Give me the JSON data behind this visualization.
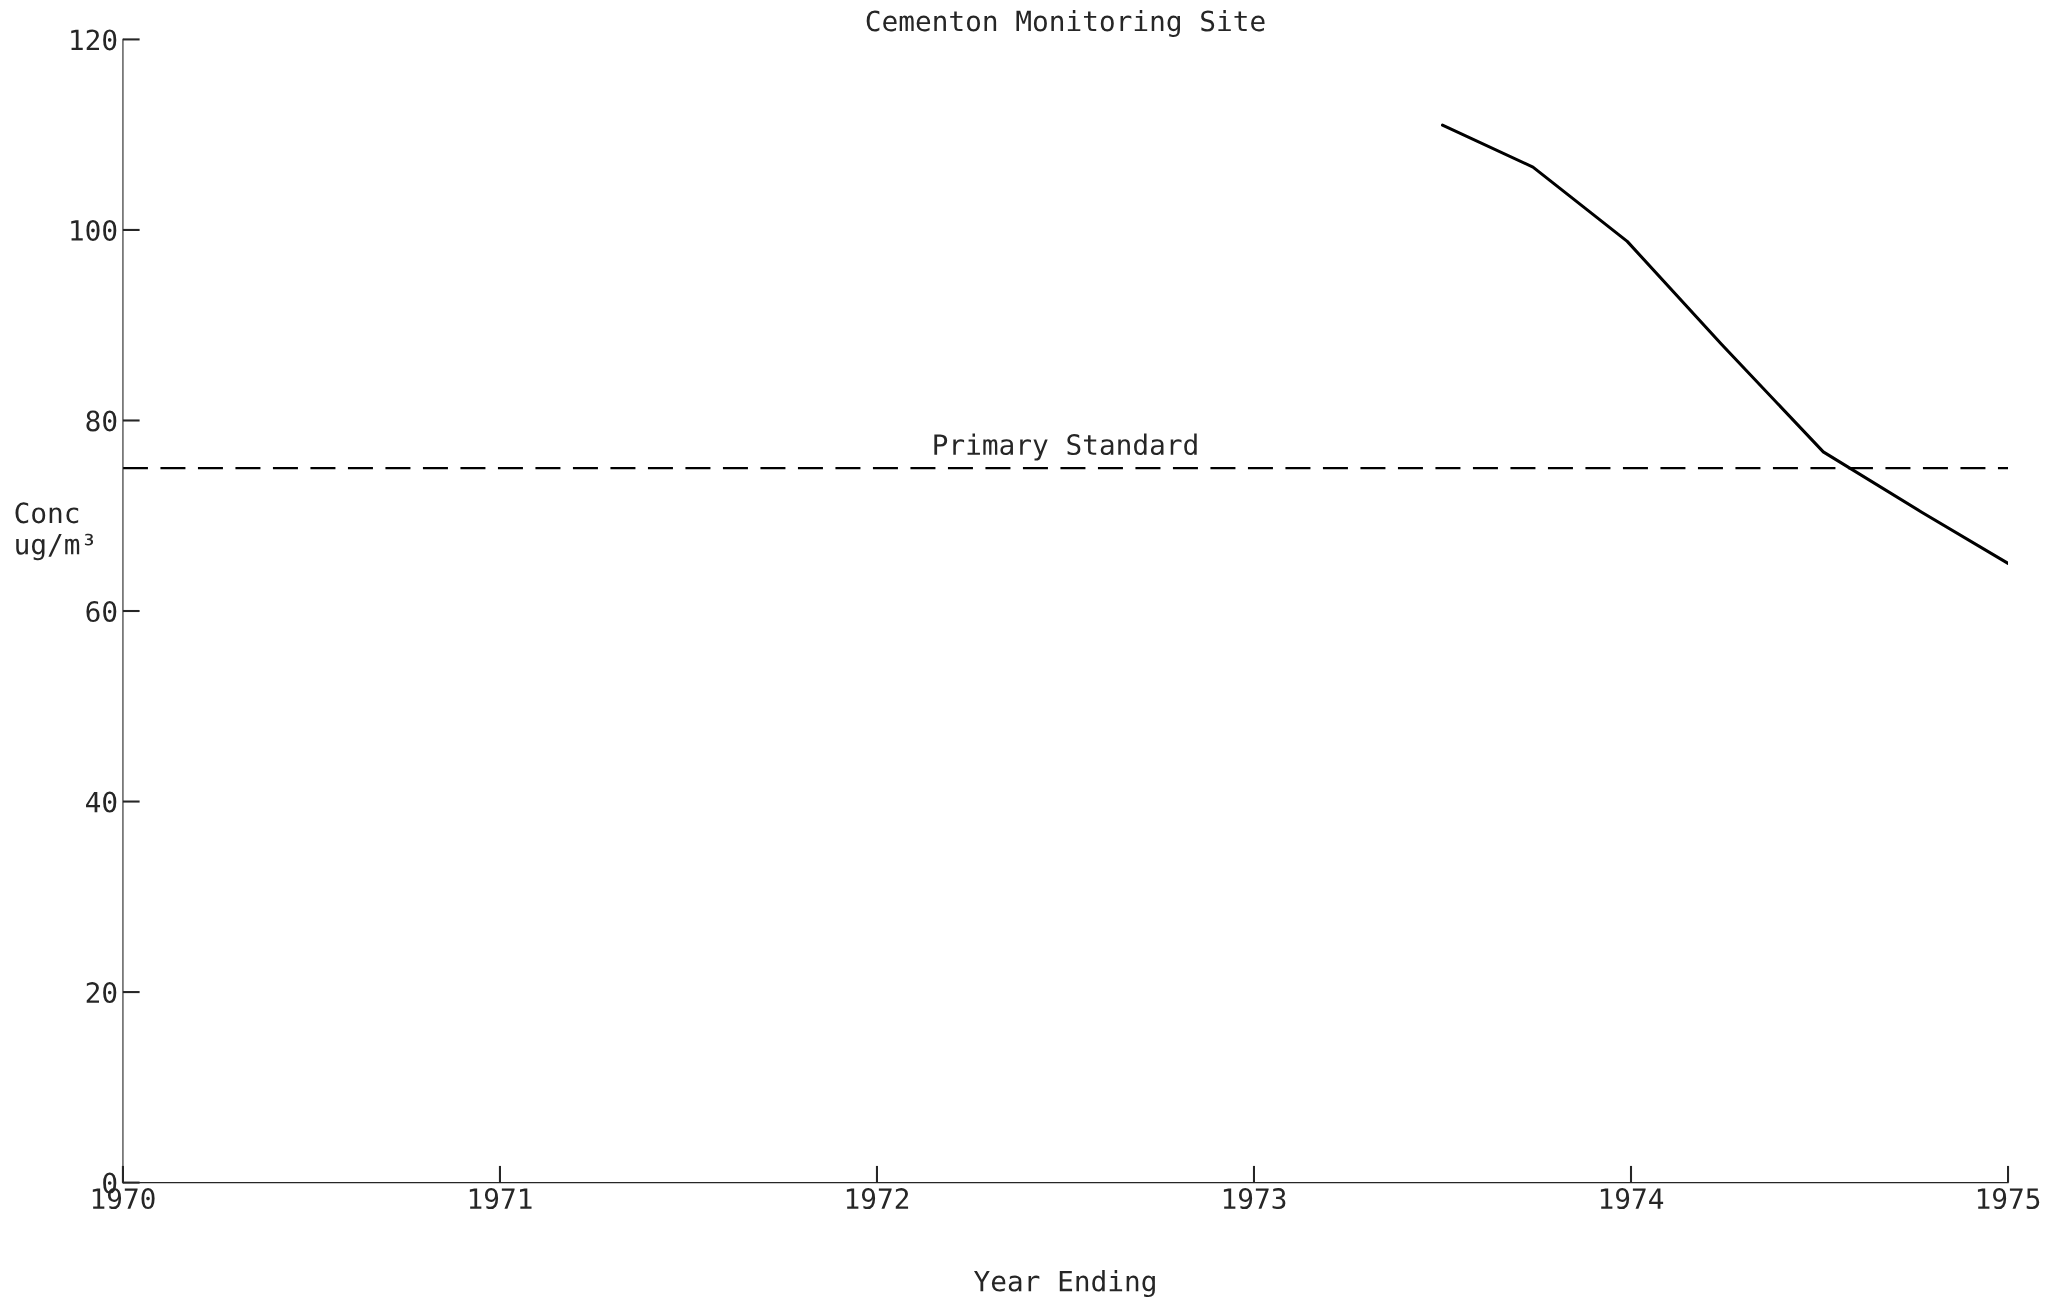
{
  "chart_data": {
    "type": "line",
    "title": "Cementon Monitoring Site",
    "xlabel": "Year Ending",
    "ylabel": "Conc\nug/m³",
    "x": [
      1973.5,
      1973.74,
      1973.99,
      1974.24,
      1974.51,
      1974.77,
      1975.0
    ],
    "series": [
      {
        "color": "#000000",
        "values": [
          111,
          106.6,
          98.8,
          88,
          76.7,
          70.4,
          65
        ]
      }
    ],
    "xlim": [
      1970,
      1975
    ],
    "xticks": [
      1970,
      1971,
      1972,
      1973,
      1974,
      1975
    ],
    "ylim": [
      0,
      120
    ],
    "yticks": [
      0,
      20,
      40,
      60,
      80,
      100,
      120
    ],
    "ref_lines": [
      {
        "axis": "y",
        "value": 75,
        "label": "Primary Standard",
        "color": "#000000",
        "line_style": "dashed"
      }
    ],
    "grid": false,
    "legend": false,
    "marker": "none",
    "line_style": "solid"
  }
}
